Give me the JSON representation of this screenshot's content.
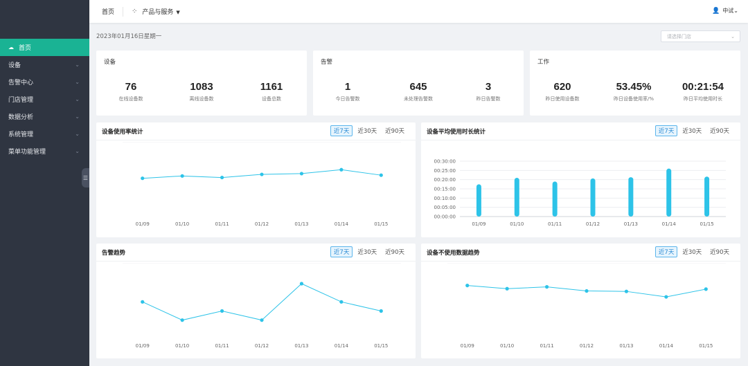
{
  "header": {
    "home": "首页",
    "products": "产品与服务",
    "user": "中试"
  },
  "sidebar": {
    "items": [
      {
        "label": "首页",
        "active": true
      },
      {
        "label": "设备"
      },
      {
        "label": "告警中心"
      },
      {
        "label": "门店管理"
      },
      {
        "label": "数据分析"
      },
      {
        "label": "系统管理"
      },
      {
        "label": "菜单功能管理"
      }
    ]
  },
  "date": "2023年01月16日星期一",
  "store_select": {
    "placeholder": "请选择门店"
  },
  "cards": [
    {
      "title": "设备",
      "items": [
        {
          "value": "76",
          "label": "在线设备数"
        },
        {
          "value": "1083",
          "label": "离线设备数"
        },
        {
          "value": "1161",
          "label": "设备总数"
        }
      ]
    },
    {
      "title": "告警",
      "items": [
        {
          "value": "1",
          "label": "今日告警数"
        },
        {
          "value": "645",
          "label": "未处理告警数"
        },
        {
          "value": "3",
          "label": "昨日告警数"
        }
      ]
    },
    {
      "title": "工作",
      "items": [
        {
          "value": "620",
          "label": "昨日使用设备数"
        },
        {
          "value": "53.45%",
          "label": "昨日设备使用率/%"
        },
        {
          "value": "00:21:54",
          "label": "昨日平均使用时长"
        }
      ]
    }
  ],
  "tabs": [
    "近7天",
    "近30天",
    "近90天"
  ],
  "accent_color": "#1ab394",
  "chart_color": "#2dc3e8",
  "chart_data": [
    {
      "type": "line",
      "title": "设备使用率统计",
      "categories": [
        "01/09",
        "01/10",
        "01/11",
        "01/12",
        "01/13",
        "01/14",
        "01/15"
      ],
      "values": [
        49,
        52,
        50,
        54,
        55,
        60,
        53
      ],
      "ylim": [
        0,
        70
      ],
      "yticks": [
        "0",
        "10",
        "20",
        "30",
        "40",
        "50",
        "60",
        "70"
      ],
      "grid": true
    },
    {
      "type": "bar",
      "title": "设备平均使用时长统计",
      "categories": [
        "01/09",
        "01/10",
        "01/11",
        "01/12",
        "01/13",
        "01/14",
        "01/15"
      ],
      "values": [
        "00:17:30",
        "00:21:00",
        "00:19:00",
        "00:20:40",
        "00:21:20",
        "00:26:00",
        "00:21:40"
      ],
      "ylim": [
        "00:00:00",
        "00:30:00"
      ],
      "yticks": [
        "00:00:00",
        "00:05:00",
        "00:10:00",
        "00:15:00",
        "00:20:00",
        "00:25:00",
        "00:30:00"
      ],
      "grid": true
    },
    {
      "type": "line",
      "title": "告警趋势",
      "categories": [
        "01/09",
        "01/10",
        "01/11",
        "01/12",
        "01/13",
        "01/14",
        "01/15"
      ],
      "values": [
        4,
        2,
        3,
        2,
        6,
        4,
        3
      ],
      "ylim": [
        0,
        6
      ],
      "yticks": [
        "0",
        "1",
        "2",
        "3",
        "4",
        "5",
        "6"
      ],
      "grid": true
    },
    {
      "type": "line",
      "title": "设备不使用数据趋势",
      "categories": [
        "01/09",
        "01/10",
        "01/11",
        "01/12",
        "01/13",
        "01/14",
        "01/15"
      ],
      "values": [
        580,
        545,
        565,
        520,
        515,
        455,
        540
      ],
      "ylim": [
        0,
        600
      ],
      "yticks": [
        "0",
        "100",
        "200",
        "300",
        "400",
        "500",
        "600"
      ],
      "grid": true
    }
  ]
}
